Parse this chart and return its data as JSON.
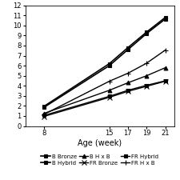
{
  "x": [
    8,
    15,
    17,
    19,
    21
  ],
  "series": {
    "B Bronze": [
      1.85,
      6.0,
      7.6,
      9.2,
      10.65
    ],
    "B Hybrid": [
      1.95,
      6.2,
      7.8,
      9.35,
      10.8
    ],
    "B H x B": [
      1.25,
      3.55,
      4.3,
      5.0,
      5.8
    ],
    "FR Bronze": [
      0.95,
      2.85,
      3.45,
      3.95,
      4.45
    ],
    "FR Hybrid": [
      1.05,
      2.95,
      3.55,
      4.05,
      4.5
    ],
    "FR H x B": [
      1.15,
      4.45,
      5.25,
      6.25,
      7.55
    ]
  },
  "markers": {
    "B Bronze": "s",
    "B Hybrid": "s",
    "B H x B": "^",
    "FR Bronze": "x",
    "FR Hybrid": "s",
    "FR H x B": "+"
  },
  "marker_filled": {
    "B Bronze": true,
    "B Hybrid": true,
    "B H x B": true,
    "FR Bronze": false,
    "FR Hybrid": true,
    "FR H x B": false
  },
  "linestyles": {
    "B Bronze": "-",
    "B Hybrid": "-",
    "B H x B": "-",
    "FR Bronze": "-",
    "FR Hybrid": "-",
    "FR H x B": "-"
  },
  "linewidths": {
    "B Bronze": 1.2,
    "B Hybrid": 1.2,
    "B H x B": 1.0,
    "FR Bronze": 1.0,
    "FR Hybrid": 1.0,
    "FR H x B": 1.0
  },
  "markersizes": {
    "B Bronze": 3.5,
    "B Hybrid": 3.5,
    "B H x B": 3.5,
    "FR Bronze": 4.5,
    "FR Hybrid": 3.5,
    "FR H x B": 5.0
  },
  "xlabel": "Age (week)",
  "xlim": [
    6,
    22
  ],
  "ylim": [
    0,
    12
  ],
  "yticks": [
    0,
    1,
    2,
    3,
    4,
    5,
    6,
    7,
    8,
    9,
    10,
    11,
    12
  ],
  "xticks": [
    8,
    15,
    17,
    19,
    21
  ],
  "background_color": "#ffffff",
  "legend_order": [
    "B Bronze",
    "B Hybrid",
    "B H x B",
    "FR Bronze",
    "FR Hybrid",
    "FR H x B"
  ]
}
